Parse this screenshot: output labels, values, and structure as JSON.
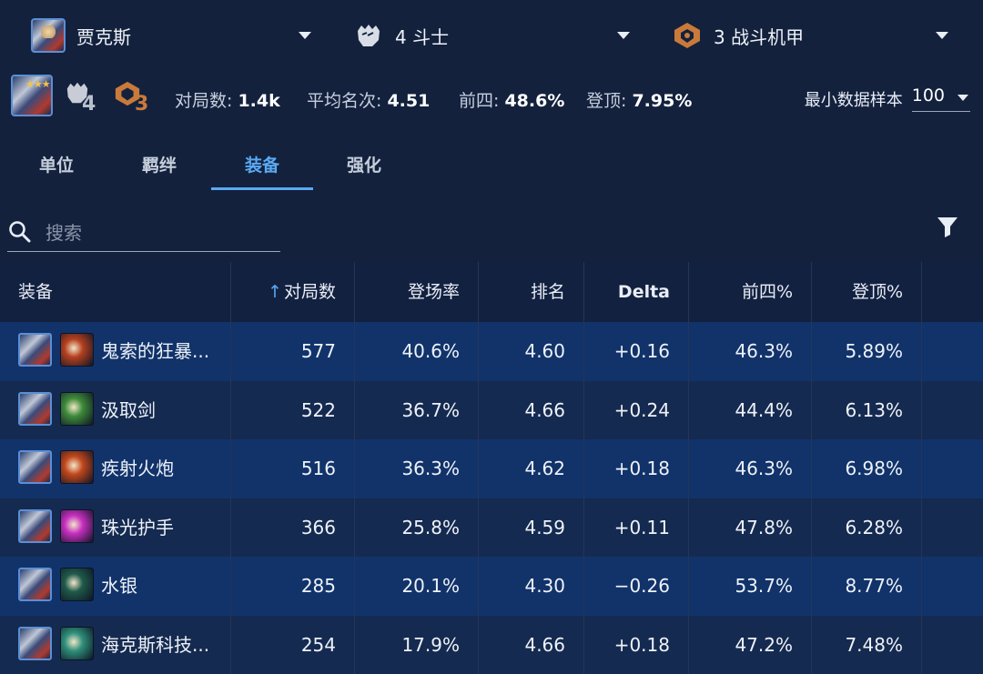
{
  "selectors": {
    "champion": {
      "label": "贾克斯",
      "icon": "champion-portrait-icon"
    },
    "trait1": {
      "label": "4 斗士",
      "icon": "fist-icon"
    },
    "trait2": {
      "label": "3 战斗机甲",
      "icon": "mech-icon"
    }
  },
  "summary": {
    "stars": "★★★",
    "trait1_count": "4",
    "trait2_count": "3",
    "games_label": "对局数:",
    "games_value": "1.4k",
    "avg_label": "平均名次:",
    "avg_value": "4.51",
    "top4_label": "前四:",
    "top4_value": "48.6%",
    "win_label": "登顶:",
    "win_value": "7.95%",
    "min_sample_label": "最小数据样本",
    "min_sample_value": "100"
  },
  "tabs": [
    {
      "label": "单位"
    },
    {
      "label": "羁绊"
    },
    {
      "label": "装备",
      "active": true
    },
    {
      "label": "强化"
    }
  ],
  "search": {
    "placeholder": "搜索"
  },
  "table": {
    "headers": {
      "item": "装备",
      "games": "对局数",
      "play_rate": "登场率",
      "place": "排名",
      "delta": "Delta",
      "top4": "前四%",
      "win": "登顶%"
    },
    "rows": [
      {
        "name": "鬼索的狂暴...",
        "icon_color": "#b5401f",
        "games": "577",
        "play_rate": "40.6%",
        "place": "4.60",
        "delta": "+0.16",
        "top4": "46.3%",
        "win": "5.89%"
      },
      {
        "name": "汲取剑",
        "icon_color": "#3e8a3a",
        "games": "522",
        "play_rate": "36.7%",
        "place": "4.66",
        "delta": "+0.24",
        "top4": "44.4%",
        "win": "6.13%"
      },
      {
        "name": "疾射火炮",
        "icon_color": "#c2471c",
        "games": "516",
        "play_rate": "36.3%",
        "place": "4.62",
        "delta": "+0.18",
        "top4": "46.3%",
        "win": "6.98%"
      },
      {
        "name": "珠光护手",
        "icon_color": "#c72fc0",
        "games": "366",
        "play_rate": "25.8%",
        "place": "4.59",
        "delta": "+0.11",
        "top4": "47.8%",
        "win": "6.28%"
      },
      {
        "name": "水银",
        "icon_color": "#1f5a4a",
        "games": "285",
        "play_rate": "20.1%",
        "place": "4.30",
        "delta": "−0.26",
        "top4": "53.7%",
        "win": "8.77%"
      },
      {
        "name": "海克斯科技...",
        "icon_color": "#2f8f7a",
        "games": "254",
        "play_rate": "17.9%",
        "place": "4.66",
        "delta": "+0.18",
        "top4": "47.2%",
        "win": "7.48%"
      }
    ]
  },
  "colors": {
    "accent": "#5aa9f2",
    "bg": "#13213d",
    "row_odd": "#11336a",
    "row_even": "#152a50",
    "trait_bronze": "#c97a3a"
  }
}
